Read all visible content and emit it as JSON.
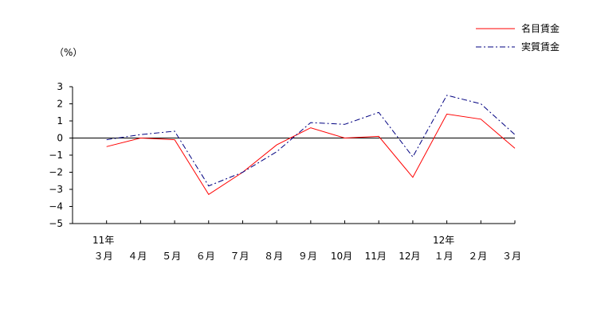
{
  "chart_data": {
    "type": "line",
    "unit_label": "（%）",
    "ylim": [
      -5,
      3
    ],
    "yticks": [
      "3",
      "2",
      "1",
      "0",
      "−1",
      "−2",
      "−3",
      "−4",
      "−5"
    ],
    "year_labels": [
      {
        "text": "11年",
        "index": 0
      },
      {
        "text": "12年",
        "index": 10
      }
    ],
    "categories": [
      "３月",
      "４月",
      "５月",
      "６月",
      "７月",
      "８月",
      "９月",
      "10月",
      "11月",
      "12月",
      "１月",
      "２月",
      "３月"
    ],
    "series": [
      {
        "name": "名目賃金",
        "color": "#ff0000",
        "dash": "",
        "values": [
          -0.5,
          0.0,
          -0.1,
          -3.3,
          -2.0,
          -0.4,
          0.6,
          0.0,
          0.1,
          -2.3,
          1.4,
          1.1,
          -0.6
        ]
      },
      {
        "name": "実質賃金",
        "color": "#000080",
        "dash": "7,3,2,3",
        "values": [
          -0.1,
          0.2,
          0.4,
          -2.8,
          -2.0,
          -0.8,
          0.9,
          0.8,
          1.5,
          -1.1,
          2.5,
          2.0,
          0.2
        ]
      }
    ],
    "legend_position": "top-right"
  }
}
